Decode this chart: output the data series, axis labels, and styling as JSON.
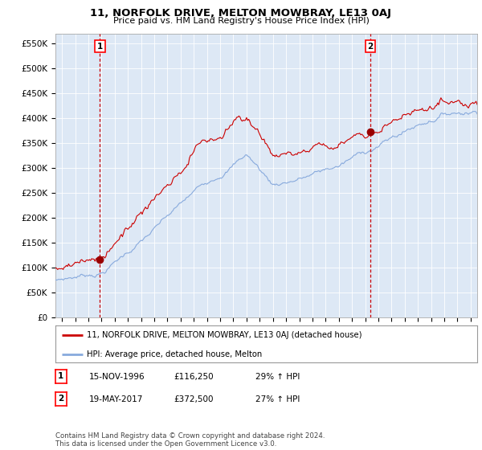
{
  "title": "11, NORFOLK DRIVE, MELTON MOWBRAY, LE13 0AJ",
  "subtitle": "Price paid vs. HM Land Registry's House Price Index (HPI)",
  "ylabel_ticks": [
    "£0",
    "£50K",
    "£100K",
    "£150K",
    "£200K",
    "£250K",
    "£300K",
    "£350K",
    "£400K",
    "£450K",
    "£500K",
    "£550K"
  ],
  "ylim": [
    0,
    570000
  ],
  "ytick_values": [
    0,
    50000,
    100000,
    150000,
    200000,
    250000,
    300000,
    350000,
    400000,
    450000,
    500000,
    550000
  ],
  "xlim_start": 1993.5,
  "xlim_end": 2025.5,
  "purchase1_date": 1996.88,
  "purchase1_price": 116250,
  "purchase2_date": 2017.38,
  "purchase2_price": 372500,
  "sale_line_color": "#cc0000",
  "hpi_line_color": "#88aadd",
  "vline_color": "#cc0000",
  "dot_color": "#990000",
  "plot_bg_color": "#dde8f5",
  "legend_label_red": "11, NORFOLK DRIVE, MELTON MOWBRAY, LE13 0AJ (detached house)",
  "legend_label_blue": "HPI: Average price, detached house, Melton",
  "annotation1_date": "15-NOV-1996",
  "annotation1_price": "£116,250",
  "annotation1_hpi": "29% ↑ HPI",
  "annotation2_date": "19-MAY-2017",
  "annotation2_price": "£372,500",
  "annotation2_hpi": "27% ↑ HPI",
  "footer": "Contains HM Land Registry data © Crown copyright and database right 2024.\nThis data is licensed under the Open Government Licence v3.0.",
  "background_color": "#ffffff",
  "grid_color": "#ffffff",
  "xtick_years": [
    1994,
    1995,
    1996,
    1997,
    1998,
    1999,
    2000,
    2001,
    2002,
    2003,
    2004,
    2005,
    2006,
    2007,
    2008,
    2009,
    2010,
    2011,
    2012,
    2013,
    2014,
    2015,
    2016,
    2017,
    2018,
    2019,
    2020,
    2021,
    2022,
    2023,
    2024,
    2025
  ]
}
